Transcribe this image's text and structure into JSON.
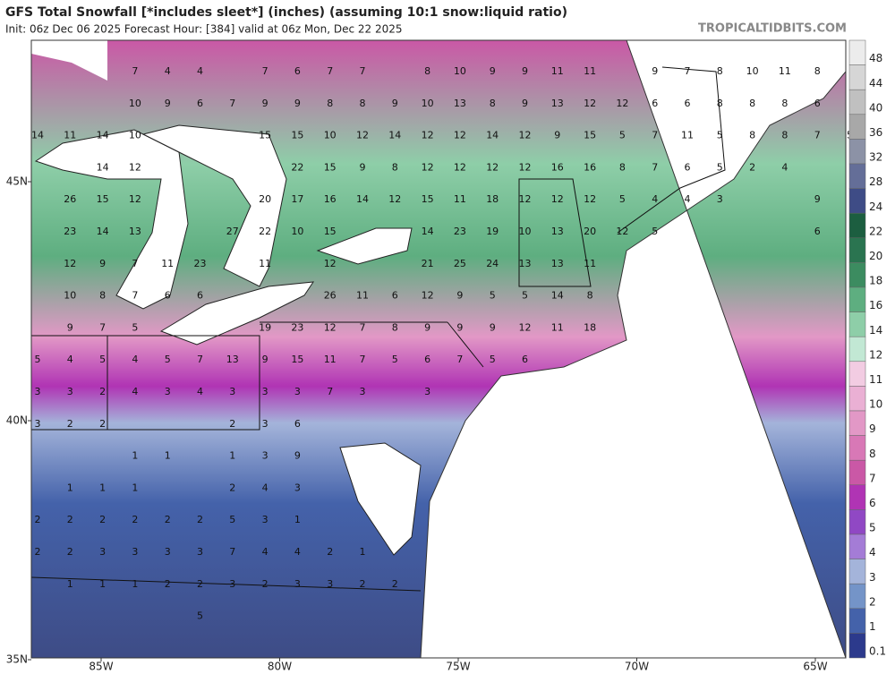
{
  "header": {
    "title": "GFS Total Snowfall [*includes sleet*] (inches) (assuming 10:1 snow:liquid ratio)",
    "subtitle": "Init: 06z Dec 06 2025   Forecast Hour: [384]   valid at 06z Mon, Dec 22 2025",
    "brand": "TROPICALTIDBITS.COM"
  },
  "map": {
    "lat_labels": [
      "45N",
      "40N",
      "35N"
    ],
    "lon_labels": [
      "85W",
      "80W",
      "75W",
      "70W",
      "65W"
    ],
    "point_labels": [
      [
        null,
        null,
        null,
        7,
        4,
        4,
        null,
        7,
        6,
        7,
        7,
        null,
        8,
        10,
        9,
        9,
        11,
        11,
        null,
        9,
        7,
        8,
        10,
        11,
        8,
        null
      ],
      [
        null,
        null,
        null,
        10,
        9,
        6,
        7,
        9,
        9,
        8,
        8,
        9,
        10,
        13,
        8,
        9,
        13,
        12,
        12,
        6,
        6,
        8,
        8,
        8,
        6,
        null
      ],
      [
        14,
        11,
        14,
        10,
        null,
        null,
        null,
        15,
        15,
        10,
        12,
        14,
        12,
        12,
        14,
        12,
        9,
        15,
        5,
        7,
        11,
        5,
        8,
        8,
        7,
        5
      ],
      [
        null,
        null,
        14,
        12,
        null,
        null,
        null,
        null,
        22,
        15,
        9,
        8,
        12,
        12,
        12,
        12,
        16,
        16,
        8,
        7,
        6,
        5,
        2,
        4,
        null,
        null
      ],
      [
        null,
        26,
        15,
        12,
        null,
        null,
        null,
        20,
        17,
        16,
        14,
        12,
        15,
        11,
        18,
        12,
        12,
        12,
        5,
        4,
        4,
        3,
        null,
        null,
        9,
        null
      ],
      [
        null,
        23,
        14,
        13,
        null,
        null,
        27,
        22,
        10,
        15,
        null,
        null,
        14,
        23,
        19,
        10,
        13,
        20,
        12,
        5,
        null,
        null,
        null,
        null,
        6,
        null
      ],
      [
        null,
        12,
        9,
        7,
        11,
        23,
        null,
        11,
        null,
        12,
        null,
        null,
        21,
        25,
        24,
        13,
        13,
        11,
        null,
        null,
        null,
        null,
        null,
        null,
        null,
        null
      ],
      [
        null,
        10,
        8,
        7,
        6,
        6,
        null,
        null,
        null,
        26,
        11,
        6,
        12,
        9,
        5,
        5,
        14,
        8,
        null,
        null,
        null,
        null,
        null,
        null,
        null,
        null
      ],
      [
        null,
        9,
        7,
        5,
        null,
        null,
        null,
        19,
        23,
        12,
        7,
        8,
        9,
        9,
        9,
        12,
        11,
        18,
        null,
        null,
        null,
        null,
        null,
        null,
        null,
        null
      ],
      [
        5,
        4,
        5,
        4,
        5,
        7,
        13,
        9,
        15,
        11,
        7,
        5,
        6,
        7,
        5,
        6,
        null,
        null,
        null,
        null,
        null,
        null,
        null,
        null,
        null,
        null
      ],
      [
        3,
        3,
        2,
        4,
        3,
        4,
        3,
        3,
        3,
        7,
        3,
        null,
        3,
        null,
        null,
        null,
        null,
        null,
        null,
        null,
        null,
        null,
        null,
        null,
        null,
        null
      ],
      [
        3,
        2,
        2,
        null,
        null,
        null,
        2,
        3,
        6,
        null,
        null,
        null,
        null,
        null,
        null,
        null,
        null,
        null,
        null,
        null,
        null,
        null,
        null,
        null,
        null,
        null
      ],
      [
        null,
        null,
        null,
        1,
        1,
        null,
        1,
        3,
        9,
        null,
        null,
        null,
        null,
        null,
        null,
        null,
        null,
        null,
        null,
        null,
        null,
        null,
        null,
        null,
        null,
        null
      ],
      [
        null,
        1,
        1,
        1,
        null,
        null,
        2,
        4,
        3,
        null,
        null,
        null,
        null,
        null,
        null,
        null,
        null,
        null,
        null,
        null,
        null,
        null,
        null,
        null,
        null,
        null
      ],
      [
        2,
        2,
        2,
        2,
        2,
        2,
        5,
        3,
        1,
        null,
        null,
        null,
        null,
        null,
        null,
        null,
        null,
        null,
        null,
        null,
        null,
        null,
        null,
        null,
        null,
        null
      ],
      [
        2,
        2,
        3,
        3,
        3,
        3,
        7,
        4,
        4,
        2,
        1,
        null,
        null,
        null,
        null,
        null,
        null,
        null,
        null,
        null,
        null,
        null,
        null,
        null,
        null,
        null
      ],
      [
        null,
        1,
        1,
        1,
        2,
        2,
        3,
        2,
        3,
        3,
        2,
        2,
        null,
        null,
        null,
        null,
        null,
        null,
        null,
        null,
        null,
        null,
        null,
        null,
        null,
        null
      ],
      [
        null,
        null,
        null,
        null,
        null,
        5,
        null,
        null,
        null,
        null,
        null,
        null,
        null,
        null,
        null,
        null,
        null,
        null,
        null,
        null,
        null,
        null,
        null,
        null,
        null,
        null
      ]
    ]
  },
  "colorbar": {
    "labels": [
      "48",
      "44",
      "40",
      "36",
      "32",
      "28",
      "24",
      "22",
      "20",
      "18",
      "16",
      "14",
      "12",
      "11",
      "10",
      "9",
      "8",
      "7",
      "6",
      "5",
      "4",
      "3",
      "2",
      "1",
      "0.1"
    ],
    "colors": [
      "#ececec",
      "#d6d6d6",
      "#c0c0c0",
      "#a8a8a8",
      "#8c92a6",
      "#646e98",
      "#3e4c86",
      "#1c5e40",
      "#2a7450",
      "#3c8c60",
      "#5eae80",
      "#8ecea8",
      "#c2e8d4",
      "#f2cce2",
      "#eab0d4",
      "#e298c6",
      "#d878b6",
      "#ca58a6",
      "#b034b4",
      "#9048c4",
      "#a47cd6",
      "#a4b4da",
      "#7494c8",
      "#4462aa",
      "#2c3a8c"
    ]
  }
}
